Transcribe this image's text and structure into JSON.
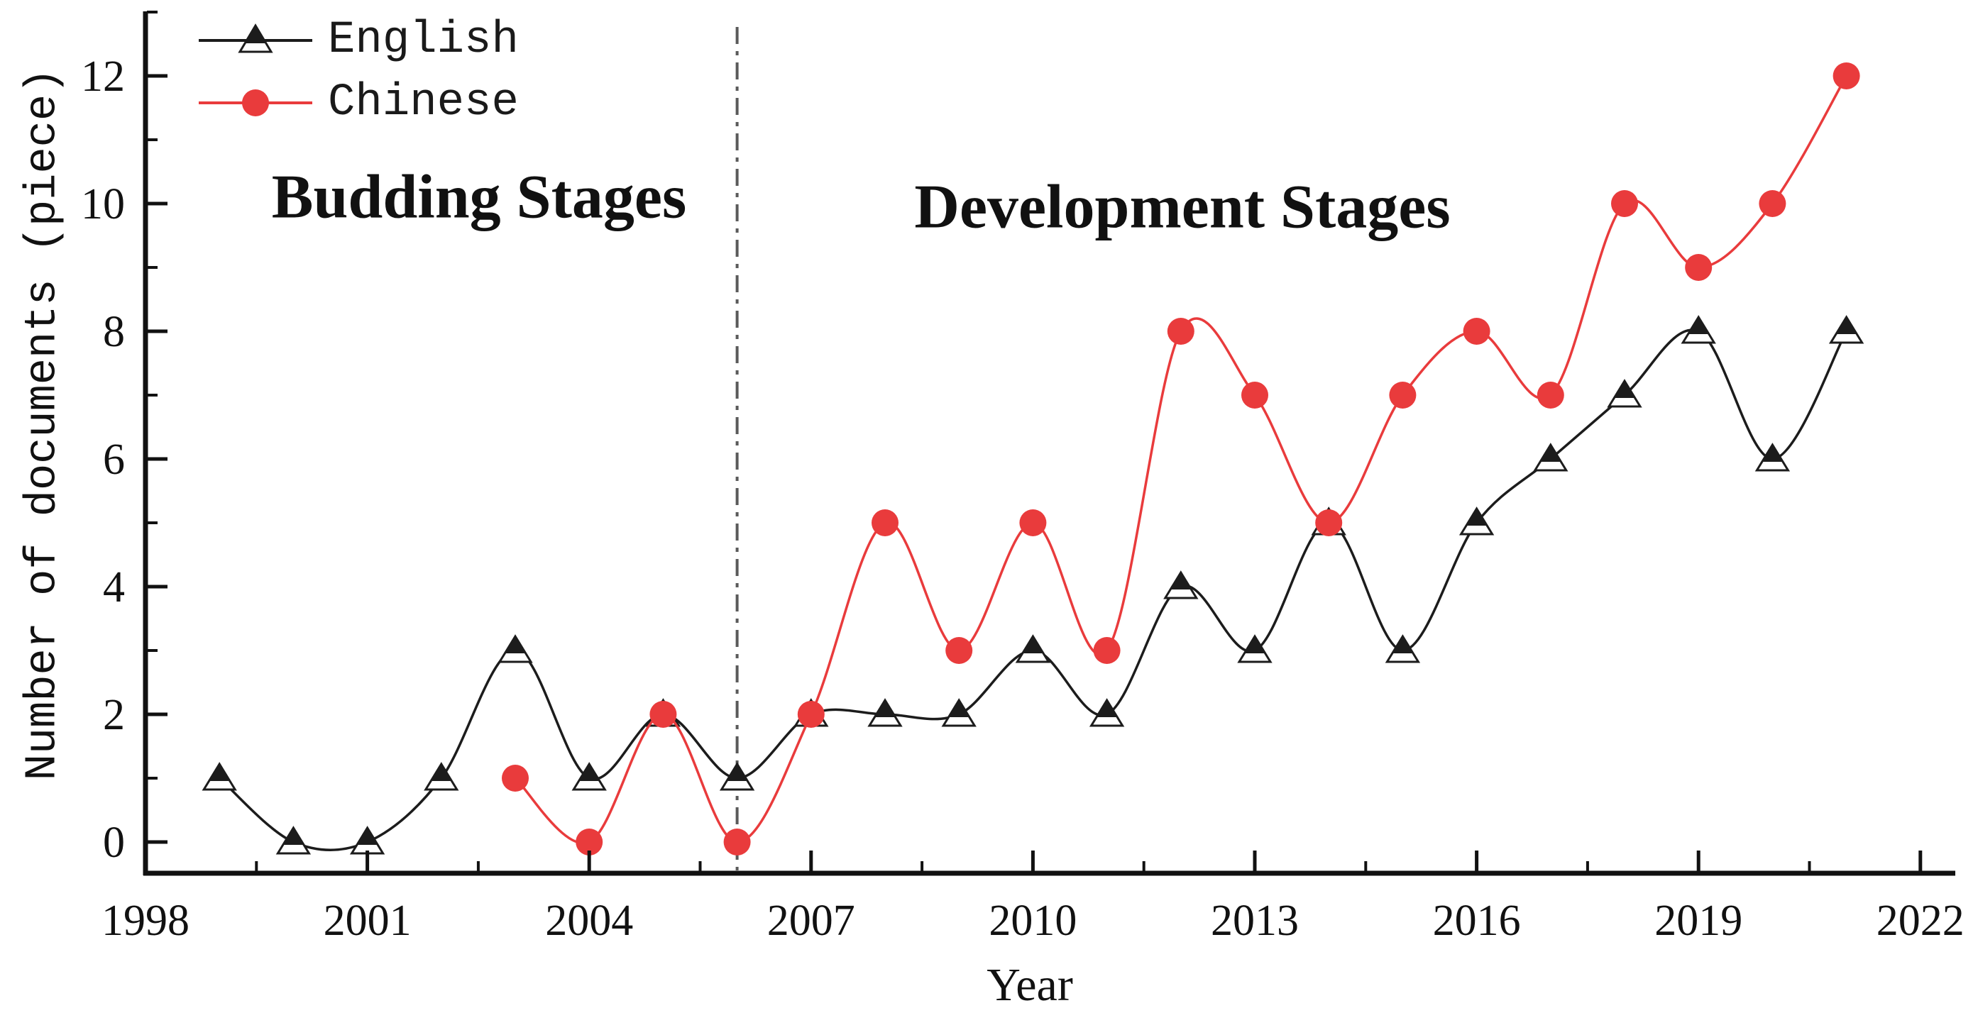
{
  "chart_data": {
    "type": "line",
    "title": "",
    "xlabel": "Year",
    "ylabel": "Number of documents (piece)",
    "grid": false,
    "legend_position": "top-left",
    "x_axis": {
      "min": 1998,
      "max": 2022,
      "ticks": [
        1998,
        2001,
        2004,
        2007,
        2010,
        2013,
        2016,
        2019,
        2022
      ],
      "minor_ticks": [
        1999.5,
        2002.5,
        2005.5,
        2008.5,
        2011.5,
        2014.5,
        2017.5,
        2020.5
      ]
    },
    "y_axis": {
      "min": 0,
      "max": 12,
      "ticks": [
        0,
        2,
        4,
        6,
        8,
        10,
        12
      ],
      "minor_ticks": [
        1,
        3,
        5,
        7,
        9,
        11,
        13
      ]
    },
    "divider": {
      "x": 2006,
      "style": "dash-dot",
      "color": "#5a5a5a"
    },
    "annotations": [
      {
        "text": "Budding Stages",
        "region": "left-of-divider"
      },
      {
        "text": "Development Stages",
        "region": "right-of-divider"
      }
    ],
    "series": [
      {
        "name": "English",
        "marker": "half-filled-triangle",
        "color": "#1c1c1c",
        "x": [
          1999,
          2000,
          2001,
          2002,
          2003,
          2004,
          2005,
          2006,
          2007,
          2008,
          2009,
          2010,
          2011,
          2012,
          2013,
          2014,
          2015,
          2016,
          2017,
          2018,
          2019,
          2020,
          2021
        ],
        "values": [
          1,
          0,
          0,
          1,
          3,
          1,
          2,
          1,
          2,
          2,
          2,
          3,
          2,
          4,
          3,
          5,
          3,
          5,
          6,
          7,
          8,
          6,
          8
        ]
      },
      {
        "name": "Chinese",
        "marker": "circle",
        "color": "#e93b3c",
        "x": [
          2003,
          2004,
          2005,
          2006,
          2007,
          2008,
          2009,
          2010,
          2011,
          2012,
          2013,
          2014,
          2015,
          2016,
          2017,
          2018,
          2019,
          2020,
          2021
        ],
        "values": [
          1,
          0,
          2,
          0,
          2,
          5,
          3,
          5,
          3,
          8,
          7,
          5,
          7,
          8,
          7,
          10,
          9,
          10,
          12
        ]
      }
    ]
  }
}
